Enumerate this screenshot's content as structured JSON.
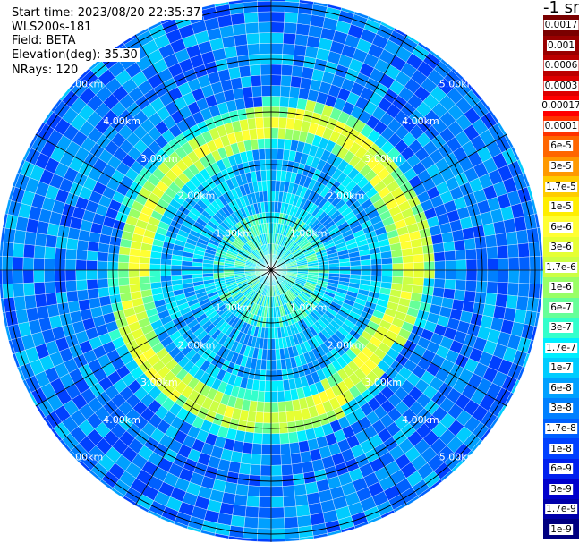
{
  "header": {
    "start_time": "Start time: 2023/08/20 22:35:37",
    "instrument": "WLS200s-181",
    "field": "Field: BETA",
    "elevation": "Elevation(deg): 35.30",
    "nrays": "NRays: 120"
  },
  "colorbar": {
    "unit": "-1 sr",
    "labels": [
      "0.0017",
      "0.001",
      "0.0006",
      "0.0003",
      "0.00017",
      "0.0001",
      "6e-5",
      "3e-5",
      "1.7e-5",
      "1e-5",
      "6e-6",
      "3e-6",
      "1.7e-6",
      "1e-6",
      "6e-7",
      "3e-7",
      "1.7e-7",
      "1e-7",
      "6e-8",
      "3e-8",
      "1.7e-8",
      "1e-8",
      "6e-9",
      "3e-9",
      "1.7e-9",
      "1e-9"
    ],
    "colors": [
      "#7a0000",
      "#990000",
      "#bb0000",
      "#dd0000",
      "#ff0000",
      "#ff3300",
      "#ff6600",
      "#ff9900",
      "#ffcc00",
      "#ffee00",
      "#ffff33",
      "#e6ff33",
      "#ccff44",
      "#99ff66",
      "#66ff99",
      "#33ffcc",
      "#00eeff",
      "#00ccff",
      "#00a0ff",
      "#0080ff",
      "#0060ff",
      "#0040ff",
      "#0020ee",
      "#0000cc",
      "#0000aa",
      "#000080"
    ]
  },
  "chart_data": {
    "type": "heatmap",
    "projection": "polar-ppi",
    "field": "BETA",
    "nrays": 120,
    "range_unit": "km",
    "max_range_km": 5.0,
    "range_rings_km": [
      1.0,
      2.0,
      3.0,
      4.0,
      5.0
    ],
    "range_ring_labels": [
      "1.00km",
      "2.00km",
      "3.00km",
      "4.00km",
      "5.00km"
    ],
    "spoke_angles_deg": [
      0,
      30,
      60,
      90,
      120,
      150,
      180,
      210,
      240,
      270,
      300,
      330
    ],
    "aerosol_layer": {
      "range_km": [
        2.4,
        3.0
      ],
      "peak_value": "1e-5",
      "color_level": "yellow-green"
    },
    "inner_region": {
      "range_km": [
        0.0,
        2.3
      ],
      "typical_value": "1.7e-7"
    },
    "outer_region": {
      "range_km": [
        3.1,
        5.2
      ],
      "typical_value": "3e-8"
    }
  }
}
